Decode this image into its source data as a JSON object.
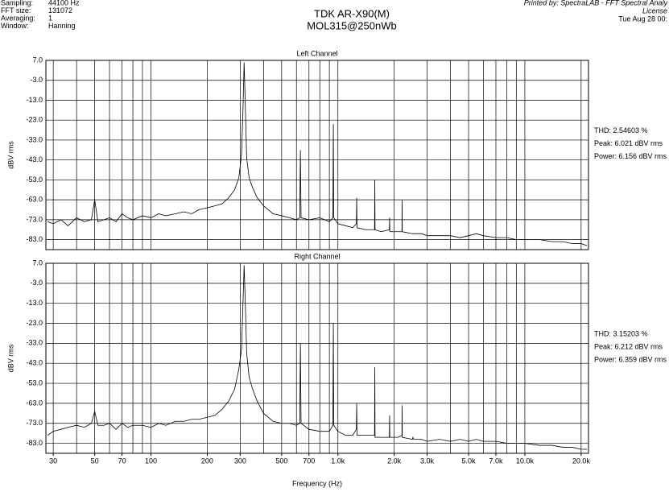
{
  "header": {
    "info": [
      [
        "Sampling:",
        "44100 Hz"
      ],
      [
        "FFT size:",
        "131072"
      ],
      [
        "Averaging:",
        "1"
      ],
      [
        "Window:",
        "Hanning"
      ]
    ],
    "title": "TDK AR-X90(M)",
    "subtitle": "MOL315@250nWb",
    "printed": [
      "Printed by: SpectraLAB - FFT Spectral Analy",
      "License",
      "Tue Aug 28 00:"
    ]
  },
  "chart_data": [
    {
      "type": "line",
      "title": "Left Channel",
      "y_label": "dBV rms",
      "log_x": true,
      "grid": true,
      "xlim": [
        27.4,
        21900
      ],
      "ylim": [
        -88,
        7
      ],
      "yticks": [
        {
          "value": 7,
          "label": "7.0"
        },
        {
          "value": -3,
          "label": "-3.0"
        },
        {
          "value": -13,
          "label": "-13.0"
        },
        {
          "value": -23,
          "label": "-23.0"
        },
        {
          "value": -33,
          "label": "-33.0"
        },
        {
          "value": -43,
          "label": "-43.0"
        },
        {
          "value": -53,
          "label": "-53.0"
        },
        {
          "value": -63,
          "label": "-63.0"
        },
        {
          "value": -73,
          "label": "-73.0"
        },
        {
          "value": -83,
          "label": "-83.0"
        }
      ],
      "xgrid": [
        30,
        40,
        50,
        60,
        70,
        80,
        90,
        100,
        200,
        300,
        400,
        500,
        600,
        700,
        800,
        900,
        1000,
        2000,
        3000,
        4000,
        5000,
        6000,
        7000,
        8000,
        9000,
        10000,
        20000
      ],
      "annotations": [
        "THD: 2.54603 %",
        "Peak: 6.021 dBV rms",
        "Power: 6.156 dBV rms"
      ],
      "series": [
        {
          "color": "#000000",
          "x": [
            28,
            30,
            33,
            36,
            40,
            44,
            48,
            50,
            52,
            56,
            60,
            65,
            70,
            75,
            80,
            90,
            100,
            110,
            120,
            135,
            150,
            165,
            180,
            200,
            220,
            240,
            260,
            280,
            295,
            305,
            310,
            315,
            320,
            325,
            335,
            350,
            370,
            400,
            450,
            500,
            550,
            600,
            625,
            630,
            635,
            700,
            800,
            900,
            940,
            945,
            950,
            1000,
            1100,
            1200,
            1255,
            1260,
            1265,
            1400,
            1570,
            1575,
            1580,
            1700,
            1885,
            1890,
            1895,
            2100,
            2200,
            2205,
            2210,
            2500,
            2520,
            2540,
            2800,
            3000,
            3500,
            4000,
            4500,
            5000,
            5500,
            6000,
            7000,
            8000,
            9000,
            10000,
            12000,
            14000,
            16000,
            18000,
            20000,
            21500
          ],
          "values": [
            -74,
            -75,
            -73,
            -76,
            -72,
            -74,
            -73,
            -63,
            -74,
            -73,
            -72,
            -74,
            -70,
            -72,
            -73,
            -71,
            -72,
            -70,
            -71,
            -70,
            -69,
            -70,
            -68,
            -67,
            -66,
            -65,
            -62,
            -58,
            -52,
            -40,
            -20,
            6,
            -18,
            -42,
            -52,
            -57,
            -62,
            -66,
            -70,
            -71,
            -72,
            -73,
            -72,
            -38,
            -72,
            -73,
            -72,
            -74,
            -72,
            -25,
            -72,
            -75,
            -76,
            -77,
            -75,
            -62,
            -77,
            -78,
            -78,
            -53,
            -78,
            -79,
            -78,
            -72,
            -79,
            -79,
            -79,
            -63,
            -79,
            -80,
            -80,
            -80,
            -80,
            -81,
            -81,
            -81,
            -82,
            -81,
            -80,
            -81,
            -82,
            -82,
            -83,
            -83,
            -83,
            -84,
            -84,
            -85,
            -85,
            -86
          ]
        }
      ]
    },
    {
      "type": "line",
      "title": "Right Channel",
      "y_label": "dBV rms",
      "x_label": "Frequency (Hz)",
      "log_x": true,
      "grid": true,
      "xlim": [
        27.4,
        21900
      ],
      "ylim": [
        -88,
        7
      ],
      "yticks": [
        {
          "value": 7,
          "label": "7.0"
        },
        {
          "value": -3,
          "label": "-3.0"
        },
        {
          "value": -13,
          "label": "-13.0"
        },
        {
          "value": -23,
          "label": "-23.0"
        },
        {
          "value": -33,
          "label": "-33.0"
        },
        {
          "value": -43,
          "label": "-43.0"
        },
        {
          "value": -53,
          "label": "-53.0"
        },
        {
          "value": -63,
          "label": "-63.0"
        },
        {
          "value": -73,
          "label": "-73.0"
        },
        {
          "value": -83,
          "label": "-83.0"
        }
      ],
      "xgrid": [
        30,
        40,
        50,
        60,
        70,
        80,
        90,
        100,
        200,
        300,
        400,
        500,
        600,
        700,
        800,
        900,
        1000,
        2000,
        3000,
        4000,
        5000,
        6000,
        7000,
        8000,
        9000,
        10000,
        20000
      ],
      "xticks": [
        30,
        50,
        70,
        100,
        200,
        300,
        500,
        700,
        {
          "value": 1000,
          "label": "1.0k"
        },
        {
          "value": 2000,
          "label": "2.0k"
        },
        {
          "value": 3000,
          "label": "3.0k"
        },
        {
          "value": 5000,
          "label": "5.0k"
        },
        {
          "value": 7000,
          "label": "7.0k"
        },
        {
          "value": 10000,
          "label": "10.0k"
        },
        {
          "value": 20000,
          "label": "20.0k"
        }
      ],
      "annotations": [
        "THD: 3.15203 %",
        "Peak: 6.212 dBV rms",
        "Power: 6.359 dBV rms"
      ],
      "series": [
        {
          "color": "#000000",
          "x": [
            28,
            30,
            33,
            36,
            40,
            44,
            48,
            50,
            52,
            56,
            60,
            65,
            70,
            75,
            80,
            90,
            100,
            110,
            120,
            135,
            150,
            165,
            180,
            200,
            220,
            240,
            260,
            280,
            295,
            305,
            310,
            315,
            320,
            325,
            335,
            350,
            370,
            400,
            450,
            500,
            550,
            600,
            625,
            630,
            635,
            700,
            800,
            900,
            940,
            945,
            950,
            1000,
            1100,
            1200,
            1255,
            1260,
            1265,
            1400,
            1570,
            1575,
            1580,
            1700,
            1885,
            1890,
            1895,
            2100,
            2200,
            2205,
            2210,
            2500,
            2520,
            2540,
            2800,
            3000,
            3500,
            4000,
            4500,
            5000,
            5500,
            6000,
            7000,
            8000,
            9000,
            10000,
            12000,
            14000,
            16000,
            18000,
            20000,
            21500
          ],
          "values": [
            -79,
            -77,
            -76,
            -75,
            -74,
            -75,
            -73,
            -67,
            -74,
            -74,
            -73,
            -76,
            -73,
            -75,
            -74,
            -74,
            -75,
            -73,
            -74,
            -72,
            -72,
            -71,
            -71,
            -70,
            -69,
            -66,
            -62,
            -56,
            -46,
            -36,
            -15,
            6,
            -15,
            -38,
            -50,
            -56,
            -62,
            -68,
            -72,
            -73,
            -73,
            -74,
            -73,
            -33,
            -73,
            -76,
            -77,
            -77,
            -74,
            -23,
            -74,
            -77,
            -79,
            -79,
            -76,
            -63,
            -79,
            -79,
            -79,
            -45,
            -80,
            -80,
            -80,
            -69,
            -80,
            -80,
            -79,
            -64,
            -80,
            -81,
            -80,
            -81,
            -81,
            -82,
            -81,
            -82,
            -81,
            -82,
            -81,
            -82,
            -82,
            -83,
            -83,
            -83,
            -84,
            -84,
            -85,
            -85,
            -86,
            -86
          ]
        }
      ]
    }
  ]
}
